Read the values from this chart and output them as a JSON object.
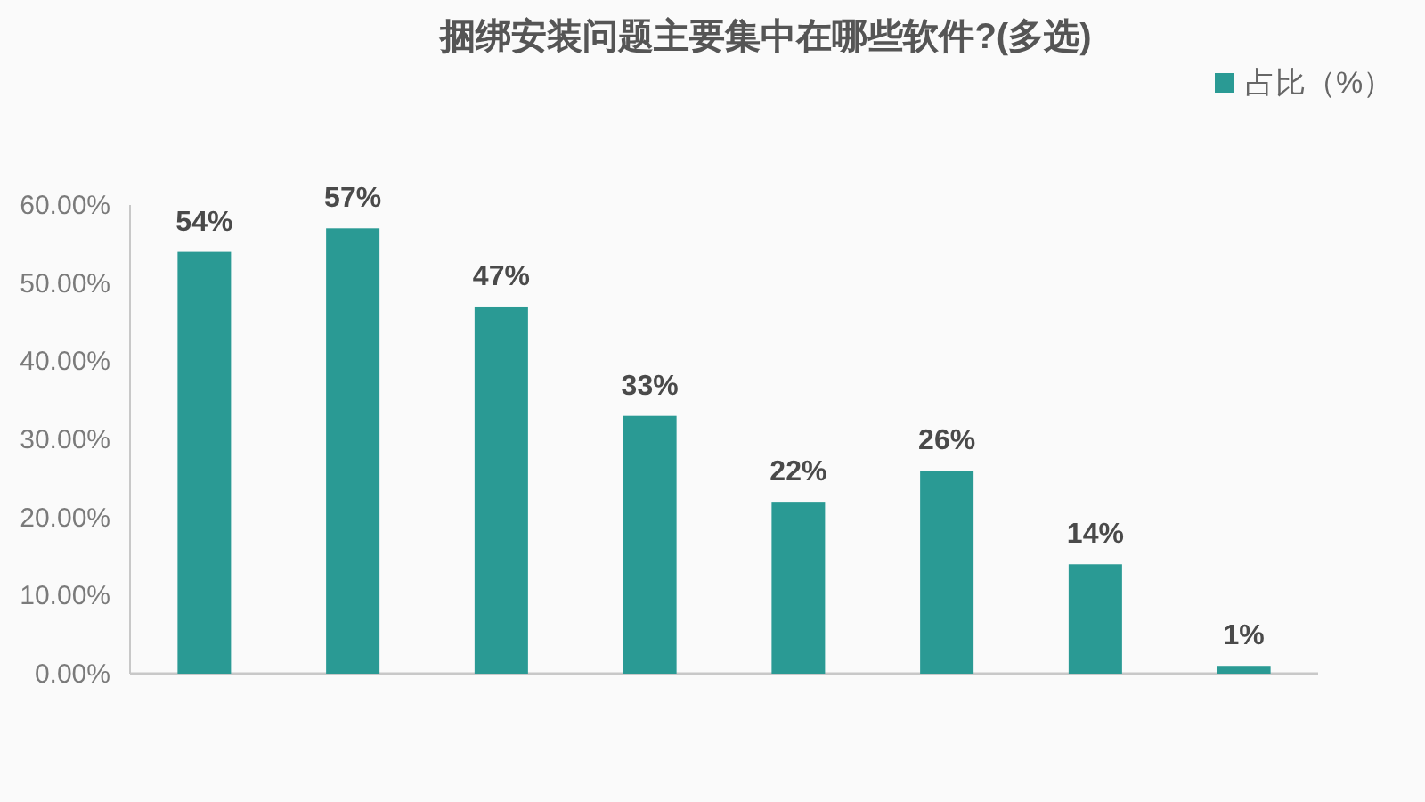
{
  "chart_data": {
    "type": "bar",
    "title": "捆绑安装问题主要集中在哪些软件?(多选)",
    "categories": [
      null,
      null,
      null,
      null,
      null,
      null,
      null,
      null
    ],
    "series": [
      {
        "name": "占比（%）",
        "color": "#2a9a94",
        "values": [
          54,
          57,
          47,
          33,
          22,
          26,
          14,
          1
        ],
        "value_labels": [
          "54%",
          "57%",
          "47%",
          "33%",
          "22%",
          "26%",
          "14%",
          "1%"
        ]
      }
    ],
    "ylim": [
      0,
      60
    ],
    "yticks": [
      {
        "value": 0,
        "label": "0.00%"
      },
      {
        "value": 10,
        "label": "10.00%"
      },
      {
        "value": 20,
        "label": "20.00%"
      },
      {
        "value": 30,
        "label": "30.00%"
      },
      {
        "value": 40,
        "label": "40.00%"
      },
      {
        "value": 50,
        "label": "50.00%"
      },
      {
        "value": 60,
        "label": "60.00%"
      }
    ],
    "legend": "top right"
  }
}
